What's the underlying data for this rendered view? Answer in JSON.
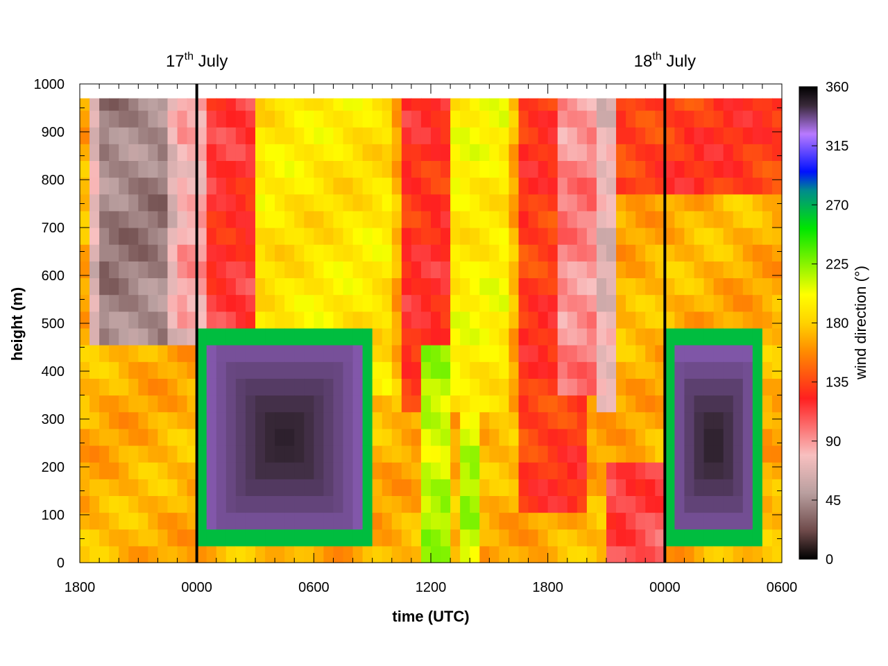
{
  "chart_data": {
    "type": "heatmap",
    "title": "",
    "xlabel": "time (UTC)",
    "ylabel": "height (m)",
    "colorbar_label": "wind direction (°)",
    "x_ticks": [
      "1800",
      "0000",
      "0600",
      "1200",
      "1800",
      "0000",
      "0600"
    ],
    "x_range_hours": [
      0,
      36
    ],
    "y_ticks": [
      "0",
      "100",
      "200",
      "300",
      "400",
      "500",
      "600",
      "700",
      "800",
      "900",
      "1000"
    ],
    "y_range": [
      0,
      1000
    ],
    "colorbar_ticks": [
      "0",
      "45",
      "90",
      "135",
      "180",
      "225",
      "270",
      "315",
      "360"
    ],
    "colorbar_range": [
      0,
      360
    ],
    "colorbar_colors": [
      "#000000",
      "#6e4a4a",
      "#b99f9f",
      "#f8c0c0",
      "#ff2020",
      "#ff8c00",
      "#ffd200",
      "#ffff00",
      "#00e600",
      "#008c8c",
      "#0010ff",
      "#b87aff",
      "#3a2a3a",
      "#000000"
    ],
    "colorbar_stops": [
      0,
      0.06,
      0.14,
      0.22,
      0.34,
      0.44,
      0.5,
      0.56,
      0.7,
      0.78,
      0.82,
      0.9,
      0.96,
      1
    ],
    "date_markers": [
      {
        "hour": 6,
        "label": "17",
        "sup": "th",
        "suffix": " July"
      },
      {
        "hour": 30,
        "label": "18",
        "sup": "th",
        "suffix": " July"
      }
    ],
    "grid": {
      "cols": 72,
      "rows": 28,
      "col_hours": 0.5,
      "row_height_m": 35,
      "top_blank_m": 30
    },
    "regions_description": "wind direction by time and height",
    "regions": [
      {
        "name": "background-southerly",
        "t": [
          0,
          36
        ],
        "z": [
          0,
          970
        ],
        "dir": 170
      },
      {
        "name": "evening-easterly-aloft-1",
        "t": [
          0.5,
          6
        ],
        "z": [
          450,
          970
        ],
        "dir": 70
      },
      {
        "name": "evening-purple-1",
        "t": [
          0.8,
          4.5
        ],
        "z": [
          470,
          970
        ],
        "dir": 40
      },
      {
        "name": "predawn-blue",
        "t": [
          5,
          8
        ],
        "z": [
          480,
          970
        ],
        "dir": 85
      },
      {
        "name": "green-band-1",
        "t": [
          6.5,
          9.5
        ],
        "z": [
          400,
          970
        ],
        "dir": 120
      },
      {
        "name": "residual-orange",
        "t": [
          9,
          16
        ],
        "z": [
          350,
          970
        ],
        "dir": 190
      },
      {
        "name": "nocturnal-jet-1",
        "t": [
          6,
          15
        ],
        "z": [
          20,
          500
        ],
        "dir": 320
      },
      {
        "name": "green-morning-1",
        "t": [
          16.5,
          21.5
        ],
        "z": [
          300,
          970
        ],
        "dir": 125
      },
      {
        "name": "red-band-1",
        "t": [
          17.5,
          19
        ],
        "z": [
          0,
          450
        ],
        "dir": 215
      },
      {
        "name": "red-band-2",
        "t": [
          19.5,
          20.5
        ],
        "z": [
          0,
          600
        ],
        "dir": 215
      },
      {
        "name": "orange-midday",
        "t": [
          19,
          22
        ],
        "z": [
          300,
          970
        ],
        "dir": 195
      },
      {
        "name": "green-afternoon",
        "t": [
          22.5,
          26
        ],
        "z": [
          100,
          970
        ],
        "dir": 130
      },
      {
        "name": "evening-easterly-2",
        "t": [
          24.5,
          27.5
        ],
        "z": [
          350,
          970
        ],
        "dir": 95
      },
      {
        "name": "blue-column-2",
        "t": [
          26.5,
          27.5
        ],
        "z": [
          330,
          970
        ],
        "dir": 70
      },
      {
        "name": "greenish-top-2",
        "t": [
          27.5,
          36
        ],
        "z": [
          780,
          970
        ],
        "dir": 130
      },
      {
        "name": "nocturnal-jet-2",
        "t": [
          30,
          35
        ],
        "z": [
          20,
          480
        ],
        "dir": 310
      },
      {
        "name": "low-green-2",
        "t": [
          27,
          30
        ],
        "z": [
          0,
          200
        ],
        "dir": 110
      }
    ]
  }
}
